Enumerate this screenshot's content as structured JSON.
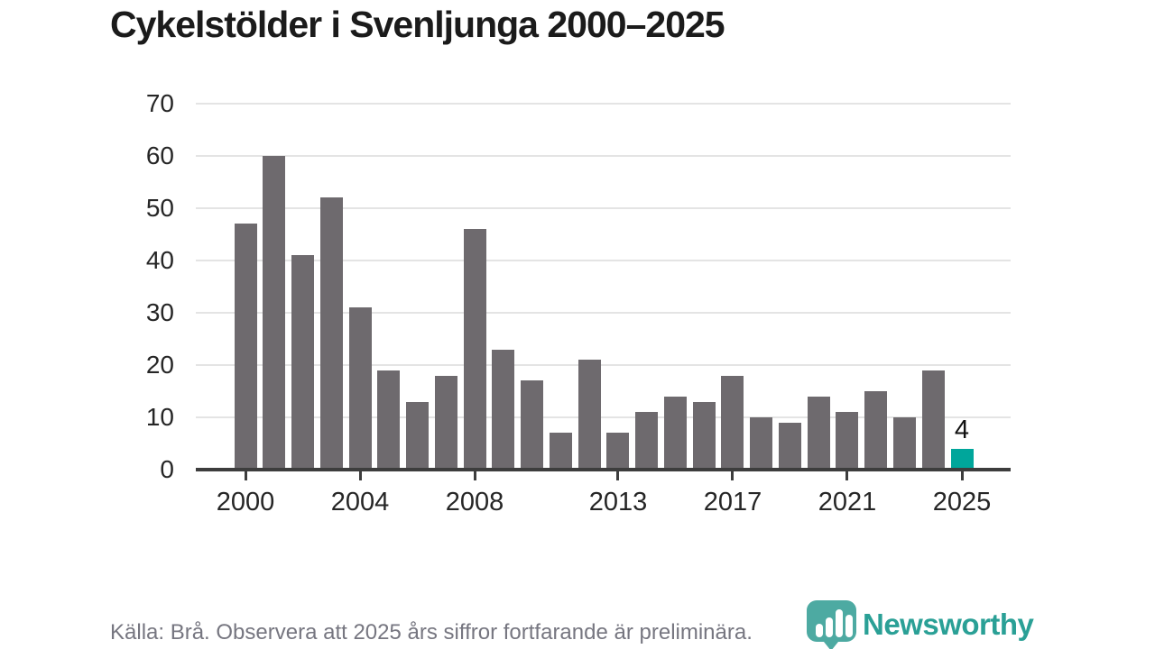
{
  "title": "Cykelstölder i Svenljunga 2000–2025",
  "footer": {
    "source_note": "Källa: Brå. Observera att 2025 års siffror fortfarande är preliminära."
  },
  "branding": {
    "logo_text": "Newsworthy",
    "logo_icon": "bar-chart-pin-icon",
    "logo_color": "#3aa198"
  },
  "chart_data": {
    "type": "bar",
    "title": "Cykelstölder i Svenljunga 2000–2025",
    "categories": [
      2000,
      2001,
      2002,
      2003,
      2004,
      2005,
      2006,
      2007,
      2008,
      2009,
      2010,
      2011,
      2012,
      2013,
      2014,
      2015,
      2016,
      2017,
      2018,
      2019,
      2020,
      2021,
      2022,
      2023,
      2024,
      2025
    ],
    "values": [
      47,
      60,
      41,
      52,
      31,
      19,
      13,
      18,
      46,
      23,
      17,
      7,
      21,
      7,
      11,
      14,
      13,
      18,
      10,
      9,
      14,
      11,
      15,
      10,
      19,
      4
    ],
    "xlabel": "",
    "ylabel": "",
    "ylim": [
      0,
      70
    ],
    "yticks": [
      0,
      10,
      20,
      30,
      40,
      50,
      60,
      70
    ],
    "xticks_labeled": [
      2000,
      2004,
      2008,
      2013,
      2017,
      2021,
      2025
    ],
    "grid": true,
    "legend": "none",
    "bar_color": "#6e6a6e",
    "highlight": {
      "category": 2025,
      "value": 4,
      "label": "4",
      "color": "#00a69b"
    }
  }
}
